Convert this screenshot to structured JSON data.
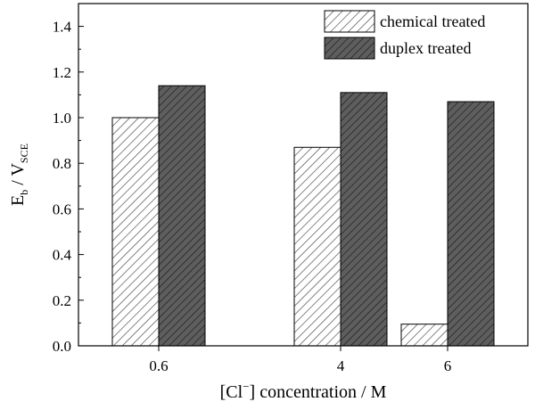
{
  "chart_data": {
    "type": "bar",
    "x": [
      0.6,
      4,
      6
    ],
    "x_tick_labels": [
      "0.6",
      "4",
      "6"
    ],
    "xlim": [
      -0.9,
      7.5
    ],
    "xlabel": {
      "pre": "[Cl",
      "sup": "−",
      "post": "] concentration / M"
    },
    "ylabel": {
      "main": "E",
      "sub1": "b",
      "mid": " / V",
      "sub2": "SCE"
    },
    "ylim": [
      0,
      1.5
    ],
    "y_ticks": [
      0.0,
      0.2,
      0.4,
      0.6,
      0.8,
      1.0,
      1.2,
      1.4
    ],
    "y_tick_labels": [
      "0.0",
      "0.2",
      "0.4",
      "0.6",
      "0.8",
      "1.0",
      "1.2",
      "1.4"
    ],
    "series": [
      {
        "name": "chemical treated",
        "values": [
          1.0,
          0.87,
          0.095
        ],
        "fill": "#ffffff",
        "hatch": "#444444"
      },
      {
        "name": "duplex treated",
        "values": [
          1.14,
          1.11,
          1.07
        ],
        "fill": "#5a5a5a",
        "hatch": "#222222"
      }
    ],
    "legend_position": "top-right",
    "grid": false
  }
}
